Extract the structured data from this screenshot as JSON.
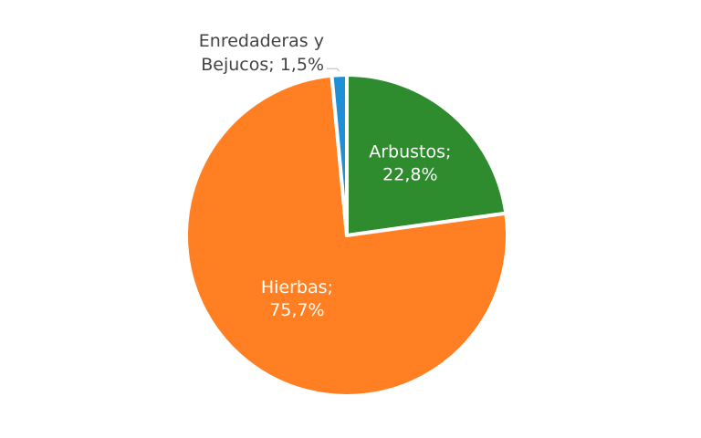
{
  "chart_data": {
    "type": "pie",
    "title": "",
    "slices": [
      {
        "label": "Arbustos",
        "value": 22.8,
        "text_name": "Arbustos;",
        "text_value": "22,8%",
        "color": "#2e8b2e",
        "label_position": "inside"
      },
      {
        "label": "Hierbas",
        "value": 75.7,
        "text_name": "Hierbas;",
        "text_value": "75,7%",
        "color": "#ff7f22",
        "label_position": "inside"
      },
      {
        "label": "Enredaderas y Bejucos",
        "value": 1.5,
        "text_name": "Enredaderas y",
        "text_value": "Bejucos; 1,5%",
        "color": "#1f8fd6",
        "label_position": "outside"
      }
    ],
    "direction": "clockwise",
    "start": "top",
    "legend": "none"
  }
}
